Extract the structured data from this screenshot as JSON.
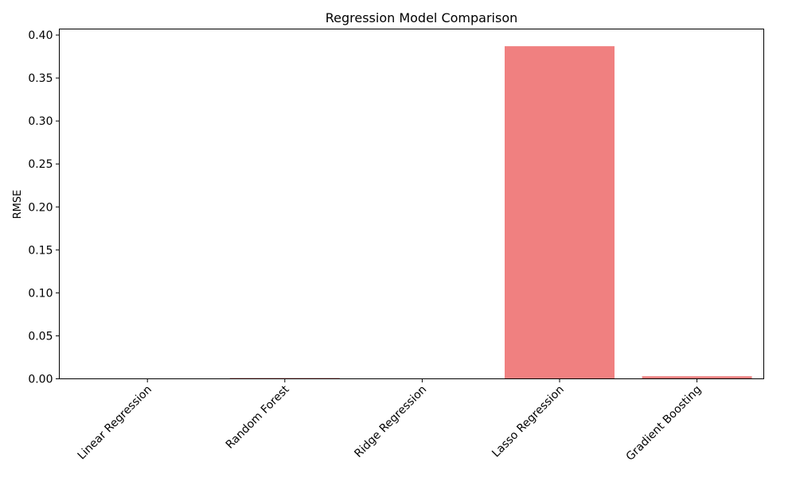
{
  "chart_data": {
    "type": "bar",
    "title": "Regression Model Comparison",
    "xlabel": "",
    "ylabel": "RMSE",
    "categories": [
      "Linear Regression",
      "Random Forest",
      "Ridge Regression",
      "Lasso Regression",
      "Gradient Boosting"
    ],
    "values": [
      0.0,
      0.001,
      0.0,
      0.387,
      0.003
    ],
    "ylim": [
      0,
      0.407
    ],
    "yticks": [
      "0.00",
      "0.05",
      "0.10",
      "0.15",
      "0.20",
      "0.25",
      "0.30",
      "0.35",
      "0.40"
    ],
    "bar_color": "#f08080",
    "grid": false,
    "legend": "none"
  }
}
